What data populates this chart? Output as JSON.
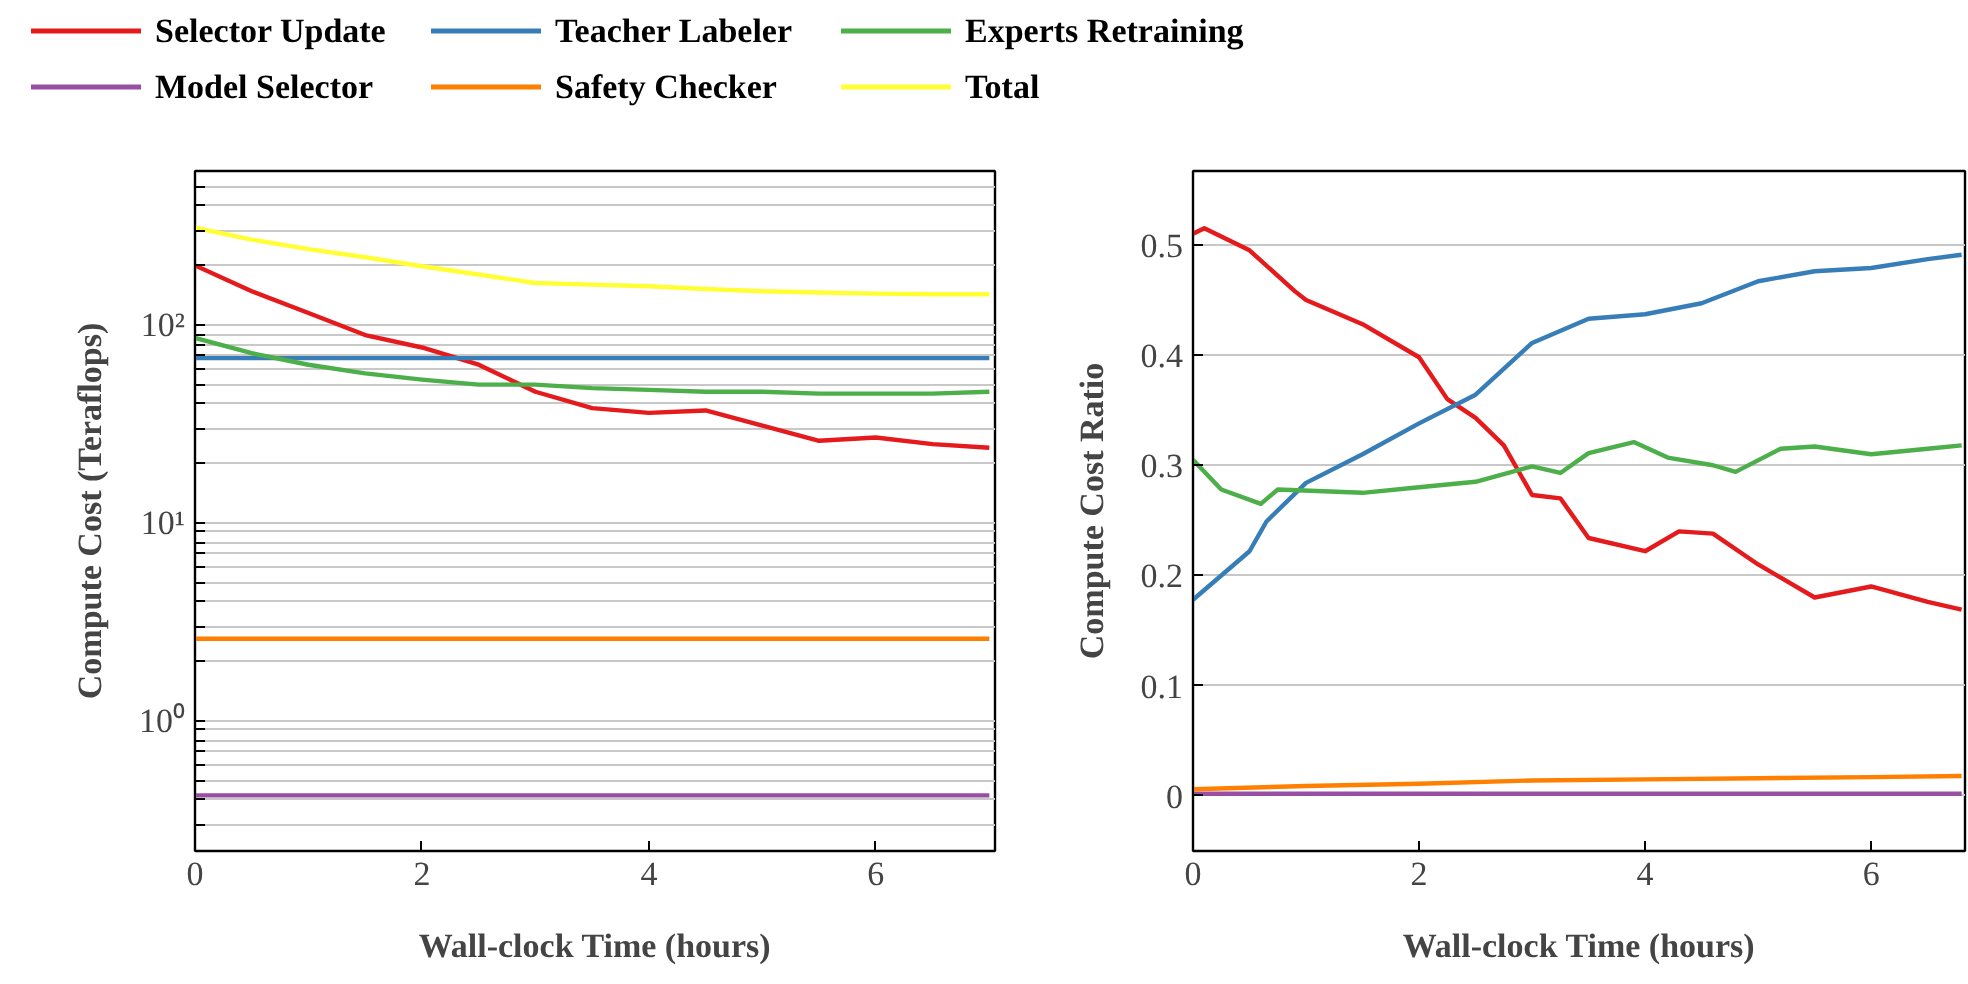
{
  "chart_data": [
    {
      "type": "line",
      "xlabel": "Wall-clock Time (hours)",
      "ylabel": "Compute Cost (Teraflops)",
      "log": "y",
      "grid": "y",
      "legend": "top",
      "x": [
        0,
        0.5,
        1,
        1.5,
        2,
        2.5,
        3,
        3.5,
        4,
        4.5,
        5,
        5.5,
        6,
        6.5,
        7
      ],
      "xlim": [
        0,
        7.05
      ],
      "xticks": [
        0,
        2,
        4,
        6
      ],
      "ylim": [
        0.22,
        600
      ],
      "yticks": [
        {
          "value": 0.3,
          "label": null
        },
        {
          "value": 0.4,
          "label": null
        },
        {
          "value": 0.5,
          "label": null
        },
        {
          "value": 0.6,
          "label": null
        },
        {
          "value": 0.7,
          "label": null
        },
        {
          "value": 0.8,
          "label": null
        },
        {
          "value": 0.9,
          "label": null
        },
        {
          "value": 1,
          "label": "10⁰"
        },
        {
          "value": 2,
          "label": null
        },
        {
          "value": 3,
          "label": null
        },
        {
          "value": 4,
          "label": null
        },
        {
          "value": 5,
          "label": null
        },
        {
          "value": 6,
          "label": null
        },
        {
          "value": 7,
          "label": null
        },
        {
          "value": 8,
          "label": null
        },
        {
          "value": 9,
          "label": null
        },
        {
          "value": 10,
          "label": "10¹"
        },
        {
          "value": 20,
          "label": null
        },
        {
          "value": 30,
          "label": null
        },
        {
          "value": 40,
          "label": null
        },
        {
          "value": 50,
          "label": null
        },
        {
          "value": 60,
          "label": null
        },
        {
          "value": 70,
          "label": null
        },
        {
          "value": 80,
          "label": null
        },
        {
          "value": 90,
          "label": null
        },
        {
          "value": 100,
          "label": "10²"
        },
        {
          "value": 200,
          "label": null
        },
        {
          "value": 300,
          "label": null
        },
        {
          "value": 400,
          "label": null
        },
        {
          "value": 500,
          "label": null
        }
      ],
      "series": [
        {
          "name": "Selector Update",
          "color": "#e41a1c",
          "values": [
            200,
            148,
            115,
            89,
            77,
            63,
            46,
            38,
            36,
            37,
            31,
            26,
            27,
            25,
            24
          ]
        },
        {
          "name": "Teacher Labeler",
          "color": "#377eb8",
          "values": [
            68,
            68,
            68,
            68,
            68,
            68,
            68,
            68,
            68,
            68,
            68,
            68,
            68,
            68,
            68
          ]
        },
        {
          "name": "Experts Retraining",
          "color": "#4daf4a",
          "values": [
            86,
            72,
            63,
            57,
            53,
            50,
            50,
            48,
            47,
            46,
            46,
            45,
            45,
            45,
            46
          ]
        },
        {
          "name": "Model Selector",
          "color": "#984ea3",
          "values": [
            0.42,
            0.42,
            0.42,
            0.42,
            0.42,
            0.42,
            0.42,
            0.42,
            0.42,
            0.42,
            0.42,
            0.42,
            0.42,
            0.42,
            0.42
          ]
        },
        {
          "name": "Safety Checker",
          "color": "#ff7f00",
          "values": [
            2.6,
            2.6,
            2.6,
            2.6,
            2.6,
            2.6,
            2.6,
            2.6,
            2.6,
            2.6,
            2.6,
            2.6,
            2.6,
            2.6,
            2.6
          ]
        },
        {
          "name": "Total",
          "color": "#ffff33",
          "values": [
            310,
            270,
            242,
            220,
            198,
            180,
            163,
            160,
            157,
            152,
            148,
            146,
            144,
            143,
            143
          ]
        }
      ]
    },
    {
      "type": "line",
      "xlabel": "Wall-clock Time (hours)",
      "ylabel": "Compute Cost Ratio",
      "grid": "y",
      "xlim": [
        0,
        6.83
      ],
      "xticks": [
        0,
        2,
        4,
        6
      ],
      "ylim": [
        -0.05,
        0.567
      ],
      "yticks": [
        0,
        0.1,
        0.2,
        0.3,
        0.4,
        0.5
      ],
      "series": [
        {
          "color": "#e41a1c",
          "x": [
            0,
            0.1,
            0.5,
            0.9,
            1,
            1.5,
            2,
            2.25,
            2.5,
            2.75,
            3,
            3.25,
            3.5,
            4,
            4.3,
            4.6,
            5,
            5.5,
            6,
            6.5,
            6.8
          ],
          "values": [
            0.51,
            0.515,
            0.495,
            0.458,
            0.45,
            0.428,
            0.398,
            0.36,
            0.343,
            0.318,
            0.273,
            0.27,
            0.234,
            0.222,
            0.24,
            0.238,
            0.21,
            0.18,
            0.19,
            0.176,
            0.169
          ]
        },
        {
          "color": "#377eb8",
          "x": [
            0,
            0.5,
            0.65,
            1,
            1.5,
            2,
            2.5,
            3,
            3.5,
            4,
            4.5,
            5,
            5.5,
            6,
            6.5,
            6.8
          ],
          "values": [
            0.178,
            0.222,
            0.249,
            0.284,
            0.31,
            0.338,
            0.364,
            0.411,
            0.433,
            0.437,
            0.447,
            0.467,
            0.476,
            0.479,
            0.487,
            0.491
          ]
        },
        {
          "color": "#4daf4a",
          "x": [
            0,
            0.25,
            0.6,
            0.75,
            1.5,
            2,
            2.5,
            3,
            3.25,
            3.5,
            3.9,
            4.2,
            4.6,
            4.8,
            5.2,
            5.5,
            6,
            6.5,
            6.8
          ],
          "values": [
            0.305,
            0.278,
            0.265,
            0.278,
            0.275,
            0.28,
            0.285,
            0.299,
            0.293,
            0.311,
            0.321,
            0.307,
            0.3,
            0.294,
            0.315,
            0.317,
            0.31,
            0.315,
            0.318
          ]
        },
        {
          "color": "#984ea3",
          "x": [
            0,
            6.8
          ],
          "values": [
            0.002,
            0.002
          ]
        },
        {
          "color": "#ff7f00",
          "x": [
            0,
            1,
            2,
            3,
            4,
            5,
            6,
            6.8
          ],
          "values": [
            0.006,
            0.009,
            0.011,
            0.014,
            0.015,
            0.016,
            0.017,
            0.018
          ]
        }
      ]
    }
  ]
}
